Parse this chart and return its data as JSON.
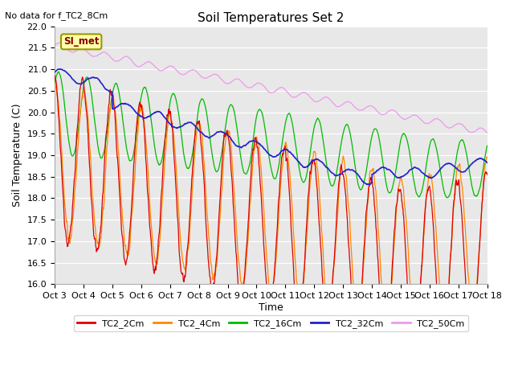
{
  "title": "Soil Temperatures Set 2",
  "ylabel": "Soil Temperature (C)",
  "xlabel": "Time",
  "note": "No data for f_TC2_8Cm",
  "si_met_label": "SI_met",
  "ylim": [
    16.0,
    22.0
  ],
  "yticks": [
    16.0,
    16.5,
    17.0,
    17.5,
    18.0,
    18.5,
    19.0,
    19.5,
    20.0,
    20.5,
    21.0,
    21.5,
    22.0
  ],
  "xtick_labels": [
    "Oct 3",
    "Oct 4",
    "Oct 5",
    "Oct 6",
    "Oct 7",
    "Oct 8",
    "Oct 9",
    "Oct 10",
    "Oct 11",
    "Oct 12",
    "Oct 13",
    "Oct 14",
    "Oct 15",
    "Oct 16",
    "Oct 17",
    "Oct 18"
  ],
  "colors": {
    "TC2_2Cm": "#dd0000",
    "TC2_4Cm": "#ff8800",
    "TC2_16Cm": "#00bb00",
    "TC2_32Cm": "#2222cc",
    "TC2_50Cm": "#ee99ee"
  },
  "legend_labels": [
    "TC2_2Cm",
    "TC2_4Cm",
    "TC2_16Cm",
    "TC2_32Cm",
    "TC2_50Cm"
  ],
  "fig_facecolor": "#ffffff",
  "plot_facecolor": "#e8e8e8",
  "grid_color": "#ffffff",
  "title_fontsize": 11,
  "axis_fontsize": 9,
  "tick_fontsize": 8,
  "note_fontsize": 8
}
